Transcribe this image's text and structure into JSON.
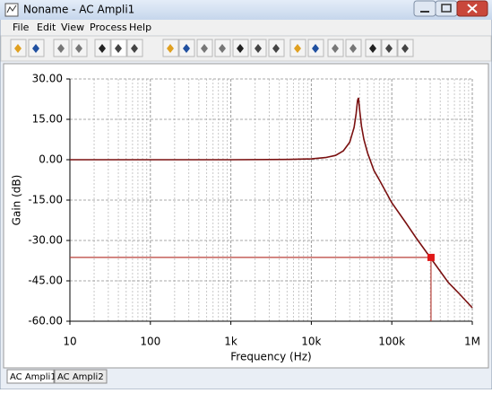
{
  "window_title": "Noname - AC Ampli1",
  "menu": [
    "File",
    "Edit",
    "View",
    "Process",
    "Help"
  ],
  "tabs": [
    "AC Ampli1",
    "AC Ampli2"
  ],
  "chart_data": {
    "type": "line",
    "xlabel": "Frequency (Hz)",
    "ylabel": "Gain (dB)",
    "xscale": "log",
    "grid": true,
    "x": [
      10,
      100,
      1000,
      5000,
      10000,
      15000,
      20000,
      25000,
      30000,
      34000,
      36000,
      37500,
      38500,
      40000,
      42000,
      45000,
      50000,
      60000,
      70000,
      100000,
      150000,
      200000,
      300000,
      500000,
      700000,
      1000000
    ],
    "values": [
      0,
      0,
      0,
      0.1,
      0.3,
      0.8,
      1.6,
      3.3,
      6.5,
      12,
      17,
      22,
      23,
      18,
      12.5,
      7.5,
      2.5,
      -4,
      -7.5,
      -16,
      -23.5,
      -29,
      -36.3,
      -45.5,
      -50,
      -55
    ],
    "color": "#7a1010",
    "cursor": {
      "x": 307000,
      "y": -36.3,
      "color": "#b8413a",
      "marker_color": "#e01818"
    },
    "xlim": [
      10,
      1000000
    ],
    "xticks": [
      10,
      100,
      {
        "value": 1000,
        "label": "1k"
      },
      {
        "value": 10000,
        "label": "10k"
      },
      {
        "value": 100000,
        "label": "100k"
      },
      {
        "value": 1000000,
        "label": "1M"
      }
    ],
    "ylim": [
      -60,
      30
    ],
    "yticks": [
      {
        "value": 30,
        "label": "30.00"
      },
      {
        "value": 15,
        "label": "15.00"
      },
      {
        "value": 0,
        "label": "0.00"
      },
      {
        "value": -15,
        "label": "-15.00"
      },
      {
        "value": -30,
        "label": "-30.00"
      },
      {
        "value": -45,
        "label": "-45.00"
      },
      {
        "value": -60,
        "label": "-60.00"
      }
    ]
  }
}
